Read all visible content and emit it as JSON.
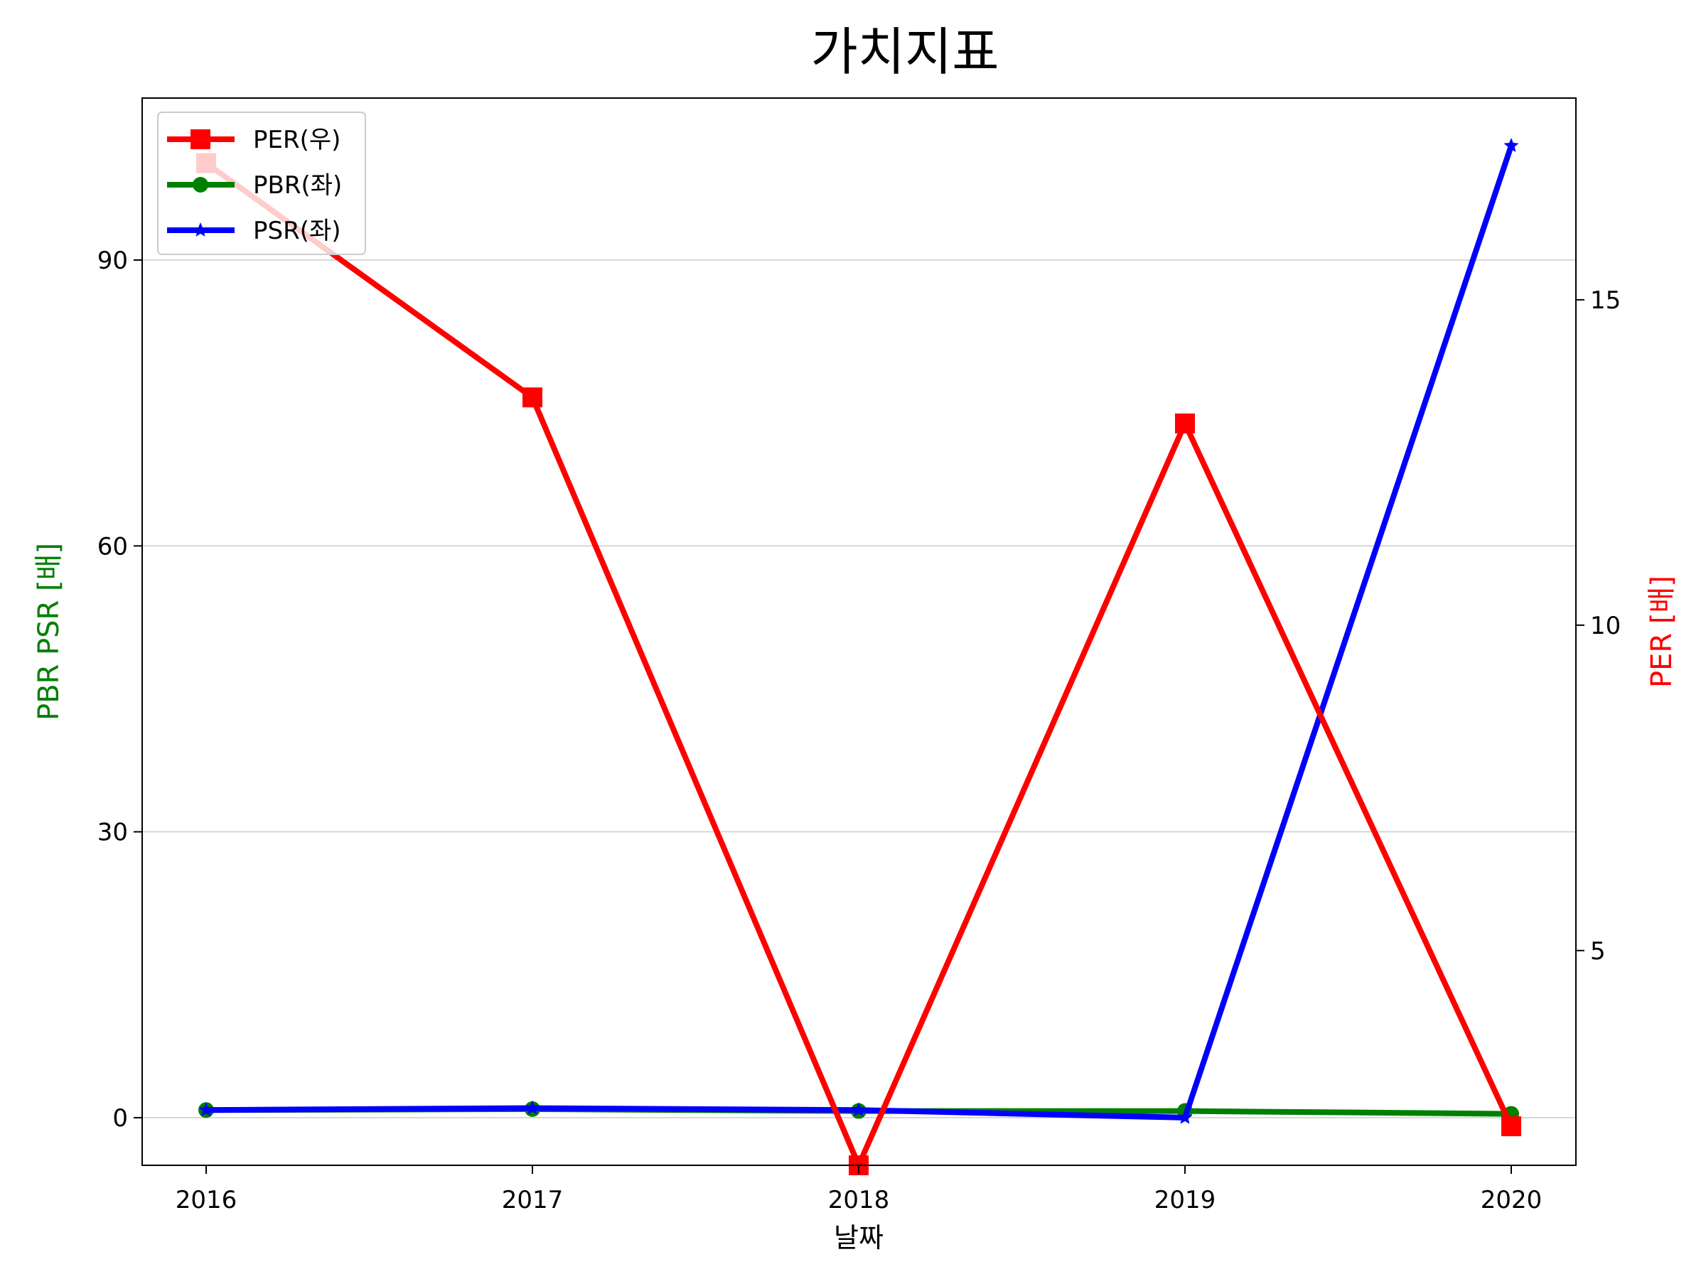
{
  "chart_data": {
    "type": "line",
    "title": "가치지표",
    "xlabel": "날짜",
    "ylabel_left": "PBR PSR [배]",
    "ylabel_right": "PER [배]",
    "categories": [
      "2016",
      "2017",
      "2018",
      "2019",
      "2020"
    ],
    "ylim_left": [
      -5,
      107
    ],
    "yticks_left": [
      "0",
      "30",
      "60",
      "90"
    ],
    "ylim_right": [
      1.7,
      18.1
    ],
    "yticks_right": [
      "5",
      "10",
      "15"
    ],
    "grid": "horizontal (left axis)",
    "legend_position": "upper-left",
    "series": [
      {
        "name": "PER(우)",
        "axis": "right",
        "color": "#ff0000",
        "marker": "square",
        "values": [
          17.1,
          13.5,
          1.7,
          13.1,
          2.3
        ]
      },
      {
        "name": "PBR(좌)",
        "axis": "left",
        "color": "#008000",
        "marker": "circle",
        "values": [
          0.8,
          0.9,
          0.7,
          0.7,
          0.4
        ]
      },
      {
        "name": "PSR(좌)",
        "axis": "left",
        "color": "#0000ff",
        "marker": "star",
        "values": [
          0.8,
          1.0,
          0.8,
          0.0,
          102.0
        ]
      }
    ],
    "colors": {
      "ylabel_left": "#008000",
      "ylabel_right": "#ff0000"
    }
  }
}
